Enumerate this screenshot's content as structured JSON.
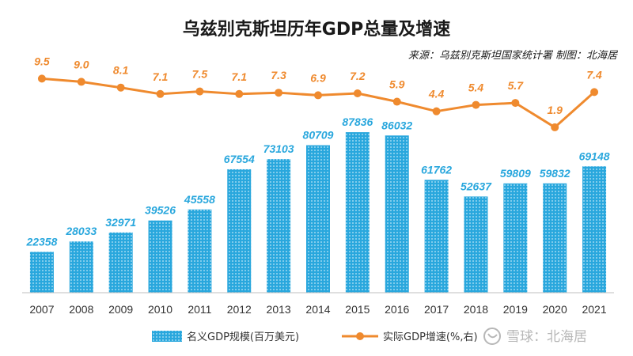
{
  "title": "乌兹别克斯坦历年GDP总量及增速",
  "source": "来源：乌兹别克斯坦国家统计署  制图：北海居",
  "watermark": "雪球：北海居",
  "colors": {
    "bar": "#29a7dd",
    "line": "#ef8a2e",
    "axis": "#bfbfbf"
  },
  "chart_data": {
    "type": "bar",
    "categories": [
      "2007",
      "2008",
      "2009",
      "2010",
      "2011",
      "2012",
      "2013",
      "2014",
      "2015",
      "2016",
      "2017",
      "2018",
      "2019",
      "2020",
      "2021"
    ],
    "series": [
      {
        "name": "名义GDP规模(百万美元)",
        "type": "bar",
        "values": [
          22358,
          28033,
          32971,
          39526,
          45558,
          67554,
          73103,
          80709,
          87836,
          86032,
          61762,
          52637,
          59809,
          59832,
          69148
        ]
      },
      {
        "name": "实际GDP增速(%,右)",
        "type": "line",
        "axis": "right",
        "values": [
          9.5,
          9.0,
          8.1,
          7.1,
          7.5,
          7.1,
          7.3,
          6.9,
          7.2,
          5.9,
          4.4,
          5.4,
          5.7,
          1.9,
          7.4
        ]
      }
    ],
    "value_labels_bar": [
      "22358",
      "28033",
      "32971",
      "39526",
      "45558",
      "67554",
      "73103",
      "80709",
      "87836",
      "86032",
      "61762",
      "52637",
      "59809",
      "59832",
      "69148"
    ],
    "value_labels_line": [
      "9.5",
      "9.0",
      "8.1",
      "7.1",
      "7.5",
      "7.1",
      "7.3",
      "6.9",
      "7.2",
      "5.9",
      "4.4",
      "5.4",
      "5.7",
      "1.9",
      "7.4"
    ],
    "title": "乌兹别克斯坦历年GDP总量及增速",
    "grid": false,
    "legend_position": "bottom"
  }
}
